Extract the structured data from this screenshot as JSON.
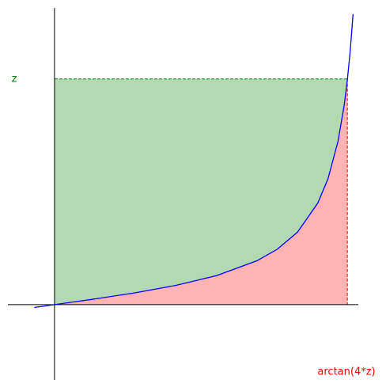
{
  "chart_data": {
    "type": "line",
    "x": [
      -0.1,
      0,
      0.2,
      0.4,
      0.6,
      0.8,
      1.0,
      1.1,
      1.2,
      1.3,
      1.35,
      1.4,
      1.43,
      1.446,
      1.46,
      1.474
    ],
    "series": [
      {
        "color": "#0000ff",
        "values": [
          -0.0251,
          0,
          0.0507,
          0.1057,
          0.171,
          0.2574,
          0.3894,
          0.4912,
          0.643,
          0.9005,
          1.1138,
          1.4495,
          1.7639,
          1.993,
          2.247,
          2.575
        ]
      }
    ],
    "point": {
      "x": 1.446,
      "y": 2
    },
    "y_marker_label": "z",
    "y_marker_color": "#008000",
    "y_fill_color": "#b3d9b3",
    "x_marker_label": "arctan(4*z)",
    "x_marker_color": "#ff0000",
    "x_fill_color": "#ffb3b3",
    "xlim": [
      -0.23,
      1.5
    ],
    "ylim": [
      -0.667,
      2.63
    ]
  }
}
